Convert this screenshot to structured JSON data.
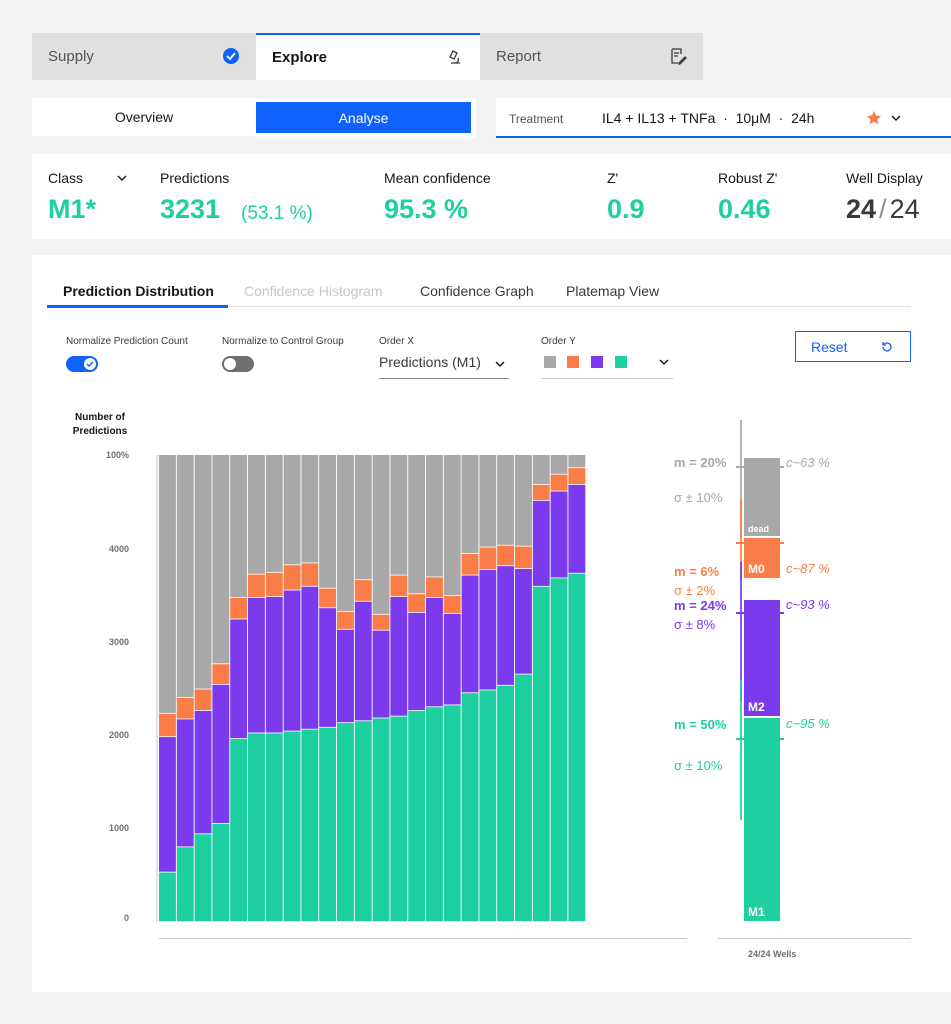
{
  "top_tabs": [
    {
      "label": "Supply",
      "icon": "check-circle-icon"
    },
    {
      "label": "Explore",
      "icon": "microscope-icon"
    },
    {
      "label": "Report",
      "icon": "edit-document-icon"
    }
  ],
  "segment": {
    "overview": "Overview",
    "analyse": "Analyse"
  },
  "treatment": {
    "label": "Treatment",
    "value": "IL4 + IL13 + TNFa  ·  10μM  ·  24h"
  },
  "metrics": {
    "class_label": "Class",
    "class_value": "M1*",
    "predictions_label": "Predictions",
    "predictions_value": "3231",
    "predictions_pct": "(53.1 %)",
    "mean_conf_label": "Mean confidence",
    "mean_conf_value": "95.3 %",
    "z_label": "Z'",
    "z_value": "0.9",
    "robust_z_label": "Robust Z'",
    "robust_z_value": "0.46",
    "well_label": "Well Display",
    "well_num": "24",
    "well_sep": "/",
    "well_den": "24"
  },
  "view_tabs": [
    "Prediction Distribution",
    "Confidence Histogram",
    "Confidence Graph",
    "Platemap View"
  ],
  "controls": {
    "norm_pred": "Normalize Prediction Count",
    "norm_ctrl": "Normalize to Control Group",
    "order_x_label": "Order X",
    "order_x_value": "Predictions (M1)",
    "order_y_label": "Order Y",
    "reset": "Reset"
  },
  "chart_data": {
    "type": "bar",
    "stacked": true,
    "ylabel": "Number of Predictions",
    "yticks": [
      "100%",
      "4000",
      "3000",
      "2000",
      "1000",
      "0"
    ],
    "ylim": [
      0,
      5000
    ],
    "series": [
      {
        "name": "M1",
        "color": "#1ecfa0",
        "values": [
          530,
          800,
          940,
          1050,
          1960,
          2020,
          2020,
          2040,
          2060,
          2080,
          2130,
          2150,
          2180,
          2200,
          2260,
          2300,
          2320,
          2450,
          2480,
          2530,
          2650,
          3590,
          3680,
          3730
        ]
      },
      {
        "name": "M2",
        "color": "#7c3aed",
        "values": [
          1450,
          1370,
          1320,
          1490,
          1280,
          1450,
          1460,
          1510,
          1530,
          1280,
          1000,
          1280,
          940,
          1280,
          1050,
          1170,
          980,
          1260,
          1290,
          1280,
          1130,
          920,
          930,
          950
        ]
      },
      {
        "name": "M0",
        "color": "#fa7d48",
        "values": [
          250,
          230,
          230,
          220,
          230,
          250,
          260,
          270,
          250,
          210,
          190,
          230,
          170,
          230,
          200,
          220,
          190,
          230,
          240,
          220,
          240,
          170,
          180,
          180
        ]
      },
      {
        "name": "dead",
        "color": "#a8a8a8",
        "values": [
          2770,
          2600,
          2510,
          2240,
          1530,
          1280,
          1260,
          1180,
          1160,
          1430,
          1680,
          1340,
          1710,
          1290,
          1490,
          1310,
          1510,
          1060,
          990,
          970,
          980,
          320,
          210,
          140
        ]
      }
    ],
    "summary": {
      "blocks": [
        {
          "label": "dead",
          "color": "#a8a8a8",
          "m": "m = 20%",
          "s": "σ  ± 10%",
          "c": "c~63 %"
        },
        {
          "label": "M0",
          "color": "#fa7d48",
          "m": "m = 6%",
          "s": "σ  ± 2%",
          "c": "c~87 %"
        },
        {
          "label": "M2",
          "color": "#7c3aed",
          "m": "m = 24%",
          "s": "σ  ± 8%",
          "c": "c~93 %"
        },
        {
          "label": "M1",
          "color": "#1ecfa0",
          "m": "m = 50%",
          "s": "σ  ± 10%",
          "c": "c~95 %"
        }
      ],
      "footer": "24/24 Wells"
    }
  }
}
